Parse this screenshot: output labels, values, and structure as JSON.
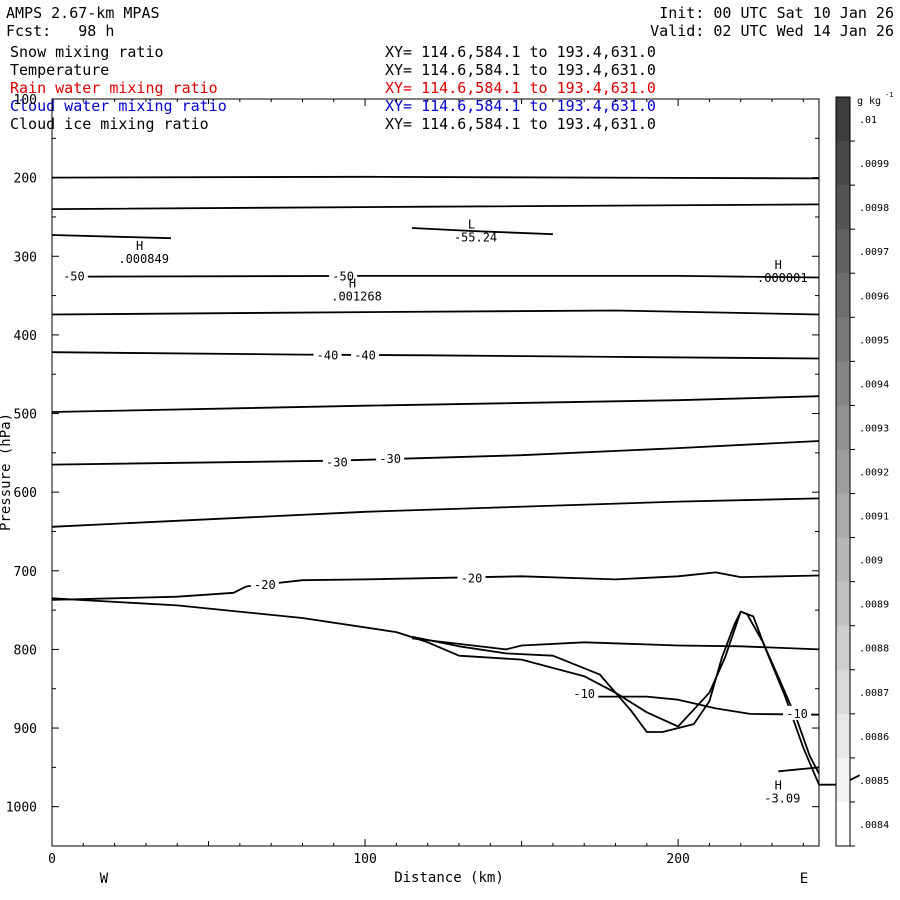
{
  "header": {
    "model": "AMPS 2.67-km MPAS",
    "fcst": "Fcst:   98 h",
    "init": "Init: 00 UTC Sat 10 Jan 26",
    "valid": "Valid: 02 UTC Wed 14 Jan 26"
  },
  "fields": [
    {
      "name": "Snow mixing ratio",
      "xy": "XY= 114.6,584.1 to 193.4,631.0",
      "color": "#000000"
    },
    {
      "name": "Temperature",
      "xy": "XY= 114.6,584.1 to 193.4,631.0",
      "color": "#000000"
    },
    {
      "name": "Rain water mixing ratio",
      "xy": "XY= 114.6,584.1 to 193.4,631.0",
      "color": "#dd0000"
    },
    {
      "name": "Cloud water mixing ratio",
      "xy": "XY= 114.6,584.1 to 193.4,631.0",
      "color": "#0000cc"
    },
    {
      "name": "Cloud ice mixing ratio",
      "xy": "XY= 114.6,584.1 to 193.4,631.0",
      "color": "#000000"
    }
  ],
  "colorbar": {
    "unit": "g kg",
    "unit_sup": "-1",
    "labels": [
      ".01",
      ".0099",
      ".0098",
      ".0097",
      ".0096",
      ".0095",
      ".0094",
      ".0093",
      ".0092",
      ".0091",
      ".009",
      ".0089",
      ".0088",
      ".0087",
      ".0086",
      ".0085",
      ".0084"
    ],
    "top_color": "#3c3c3c",
    "bottom_color": "#ffffff"
  },
  "chart_data": {
    "type": "contour",
    "xlabel": "Distance (km)",
    "ylabel": "Pressure (hPa)",
    "xlim": [
      0,
      245
    ],
    "ylim": [
      1050,
      100
    ],
    "y_log": false,
    "x_ticks": [
      {
        "v": 0,
        "label": "0"
      },
      {
        "v": 100,
        "label": "100"
      },
      {
        "v": 200,
        "label": "200"
      }
    ],
    "y_ticks": [
      {
        "v": 100,
        "label": "100"
      },
      {
        "v": 200,
        "label": "200"
      },
      {
        "v": 300,
        "label": "300"
      },
      {
        "v": 400,
        "label": "400"
      },
      {
        "v": 500,
        "label": "500"
      },
      {
        "v": 600,
        "label": "600"
      },
      {
        "v": 700,
        "label": "700"
      },
      {
        "v": 800,
        "label": "800"
      },
      {
        "v": 900,
        "label": "900"
      },
      {
        "v": 1000,
        "label": "1000"
      }
    ],
    "dir_left": "W",
    "dir_right": "E",
    "contour_lines": [
      {
        "name": "Temperature",
        "points": [
          [
            0,
            200
          ],
          [
            100,
            199
          ],
          [
            245,
            201
          ]
        ]
      },
      {
        "name": "Temperature",
        "points": [
          [
            0,
            240
          ],
          [
            120,
            237
          ],
          [
            245,
            234
          ]
        ]
      },
      {
        "name": "Temperature",
        "level": -50,
        "points": [
          [
            3,
            326
          ],
          [
            100,
            325
          ],
          [
            200,
            325
          ],
          [
            245,
            327
          ]
        ]
      },
      {
        "name": "Temperature",
        "points": [
          [
            0,
            374
          ],
          [
            100,
            371
          ],
          [
            180,
            369
          ],
          [
            245,
            374
          ]
        ]
      },
      {
        "name": "Temperature",
        "level": -40,
        "points": [
          [
            0,
            422
          ],
          [
            80,
            425
          ],
          [
            120,
            426
          ],
          [
            180,
            428
          ],
          [
            245,
            430
          ]
        ]
      },
      {
        "name": "Temperature",
        "points": [
          [
            0,
            498
          ],
          [
            100,
            490
          ],
          [
            200,
            483
          ],
          [
            245,
            478
          ]
        ]
      },
      {
        "name": "Temperature",
        "level": -30,
        "points": [
          [
            0,
            565
          ],
          [
            90,
            560
          ],
          [
            150,
            553
          ],
          [
            200,
            544
          ],
          [
            245,
            535
          ]
        ]
      },
      {
        "name": "Temperature",
        "points": [
          [
            0,
            644
          ],
          [
            100,
            625
          ],
          [
            200,
            612
          ],
          [
            245,
            608
          ]
        ]
      },
      {
        "name": "Temperature",
        "level": -20,
        "points": [
          [
            0,
            737
          ],
          [
            40,
            733
          ],
          [
            58,
            728
          ],
          [
            62,
            720
          ],
          [
            80,
            712
          ],
          [
            100,
            711
          ],
          [
            150,
            707
          ],
          [
            180,
            711
          ],
          [
            200,
            707
          ],
          [
            212,
            702
          ],
          [
            220,
            708
          ],
          [
            245,
            706
          ]
        ]
      },
      {
        "name": "Temperature",
        "level": -10,
        "points": [
          [
            115,
            786
          ],
          [
            145,
            800
          ],
          [
            150,
            795
          ],
          [
            170,
            791
          ],
          [
            200,
            795
          ],
          [
            220,
            796
          ],
          [
            245,
            800
          ]
        ]
      },
      {
        "name": "Temperature",
        "level": -10,
        "points": [
          [
            170,
            860
          ],
          [
            190,
            860
          ],
          [
            200,
            864
          ],
          [
            212,
            875
          ],
          [
            223,
            882
          ],
          [
            245,
            883
          ]
        ]
      },
      {
        "name": "Temperature",
        "points": [
          [
            232,
            955
          ],
          [
            245,
            950
          ]
        ]
      },
      {
        "name": "Temperature",
        "points": [
          [
            0,
            273
          ],
          [
            38,
            277
          ]
        ]
      },
      {
        "name": "Temperature",
        "points": [
          [
            115,
            264
          ],
          [
            135,
            268
          ],
          [
            160,
            272
          ]
        ]
      },
      {
        "name": "Terrain",
        "points": [
          [
            0,
            735
          ],
          [
            40,
            744
          ],
          [
            80,
            760
          ],
          [
            110,
            778
          ],
          [
            120,
            791
          ],
          [
            130,
            808
          ],
          [
            150,
            813
          ],
          [
            170,
            834
          ],
          [
            180,
            855
          ],
          [
            190,
            880
          ],
          [
            200,
            898
          ],
          [
            210,
            855
          ],
          [
            215,
            810
          ],
          [
            218,
            775
          ],
          [
            220,
            752
          ],
          [
            222,
            755
          ],
          [
            227,
            790
          ],
          [
            232,
            835
          ],
          [
            238,
            890
          ],
          [
            242,
            935
          ],
          [
            245,
            958
          ]
        ]
      },
      {
        "name": "Terrain",
        "points": [
          [
            115,
            784
          ],
          [
            130,
            796
          ],
          [
            145,
            805
          ],
          [
            160,
            808
          ],
          [
            175,
            832
          ],
          [
            185,
            878
          ],
          [
            190,
            905
          ],
          [
            195,
            905
          ],
          [
            205,
            895
          ],
          [
            210,
            866
          ],
          [
            214,
            810
          ],
          [
            218,
            768
          ],
          [
            220,
            752
          ],
          [
            224,
            758
          ],
          [
            228,
            800
          ],
          [
            234,
            858
          ],
          [
            240,
            925
          ],
          [
            245,
            972
          ],
          [
            252,
            972
          ],
          [
            258,
            960
          ]
        ]
      }
    ],
    "contour_labels": [
      {
        "x": 7,
        "y": 326,
        "text": "-50"
      },
      {
        "x": 93,
        "y": 326,
        "text": "-50"
      },
      {
        "x": 88,
        "y": 426,
        "text": "-40"
      },
      {
        "x": 100,
        "y": 426,
        "text": "-40"
      },
      {
        "x": 91,
        "y": 562,
        "text": "-30"
      },
      {
        "x": 108,
        "y": 558,
        "text": "-30"
      },
      {
        "x": 68,
        "y": 718,
        "text": "-20"
      },
      {
        "x": 134,
        "y": 710,
        "text": "-20"
      },
      {
        "x": 170,
        "y": 857,
        "text": "-10"
      },
      {
        "x": 238,
        "y": 882,
        "text": "-10"
      }
    ],
    "extrema": [
      {
        "x": 28,
        "y": 292,
        "mark": "H",
        "value": ".000849"
      },
      {
        "x": 96,
        "y": 340,
        "mark": "H",
        "value": ".001268"
      },
      {
        "x": 134,
        "y": 265,
        "mark": "L",
        "value": "-55.24"
      },
      {
        "x": 232,
        "y": 316,
        "mark": "H",
        "value": ".000001"
      },
      {
        "x": 232,
        "y": 978,
        "mark": "H",
        "value": "-3.09"
      }
    ]
  }
}
